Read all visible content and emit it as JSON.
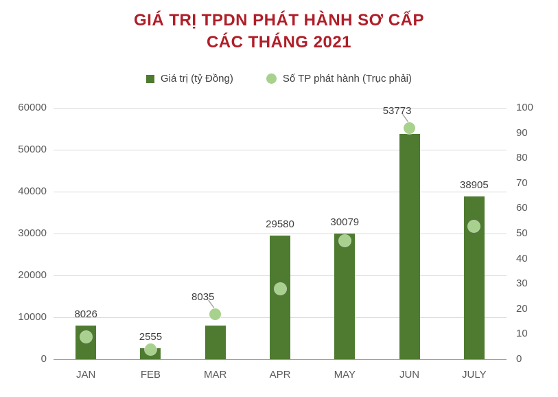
{
  "title": "GIÁ TRỊ TPDN PHÁT HÀNH SƠ CẤP\nCÁC THÁNG 2021",
  "legend": [
    {
      "label": "Giá trị (tỷ Đồng)",
      "swatch": "square",
      "color": "#4e7b30"
    },
    {
      "label": "Số TP phát hành (Trục phải)",
      "swatch": "circle",
      "color": "#a9d18e"
    }
  ],
  "colors": {
    "bar": "#4e7b30",
    "dot": "#a9d18e",
    "title": "#b01e28",
    "axis_text": "#595959",
    "label_text": "#404040",
    "gridline": "#d9d9d9",
    "axis_line": "#9e9e9e",
    "leader": "#a6a6a6"
  },
  "chart_data": {
    "type": "bar",
    "subtype": "bar-with-scatter-secondary-axis",
    "title": "GIÁ TRỊ TPDN PHÁT HÀNH SƠ CẤP CÁC THÁNG 2021",
    "categories": [
      "JAN",
      "FEB",
      "MAR",
      "APR",
      "MAY",
      "JUN",
      "JULY"
    ],
    "series": [
      {
        "name": "Giá trị (tỷ Đồng)",
        "type": "bar",
        "axis": "left",
        "values": [
          8026,
          2555,
          8035,
          29580,
          30079,
          53773,
          38905
        ]
      },
      {
        "name": "Số TP phát hành (Trục phải)",
        "type": "scatter",
        "axis": "right",
        "values": [
          9,
          4,
          18,
          28,
          47,
          92,
          53
        ]
      }
    ],
    "bar_labels": [
      "8026",
      "2555",
      "8035",
      "29580",
      "30079",
      "53773",
      "38905"
    ],
    "leader_label_indices": [
      2,
      5
    ],
    "left_axis": {
      "min": 0,
      "max": 60000,
      "step": 10000,
      "ticks": [
        "0",
        "10000",
        "20000",
        "30000",
        "40000",
        "50000",
        "60000"
      ]
    },
    "right_axis": {
      "min": 0,
      "max": 100,
      "step": 10,
      "ticks": [
        "0",
        "10",
        "20",
        "30",
        "40",
        "50",
        "60",
        "70",
        "80",
        "90",
        "100"
      ]
    },
    "grid": "horizontal",
    "legend_position": "top-center"
  }
}
